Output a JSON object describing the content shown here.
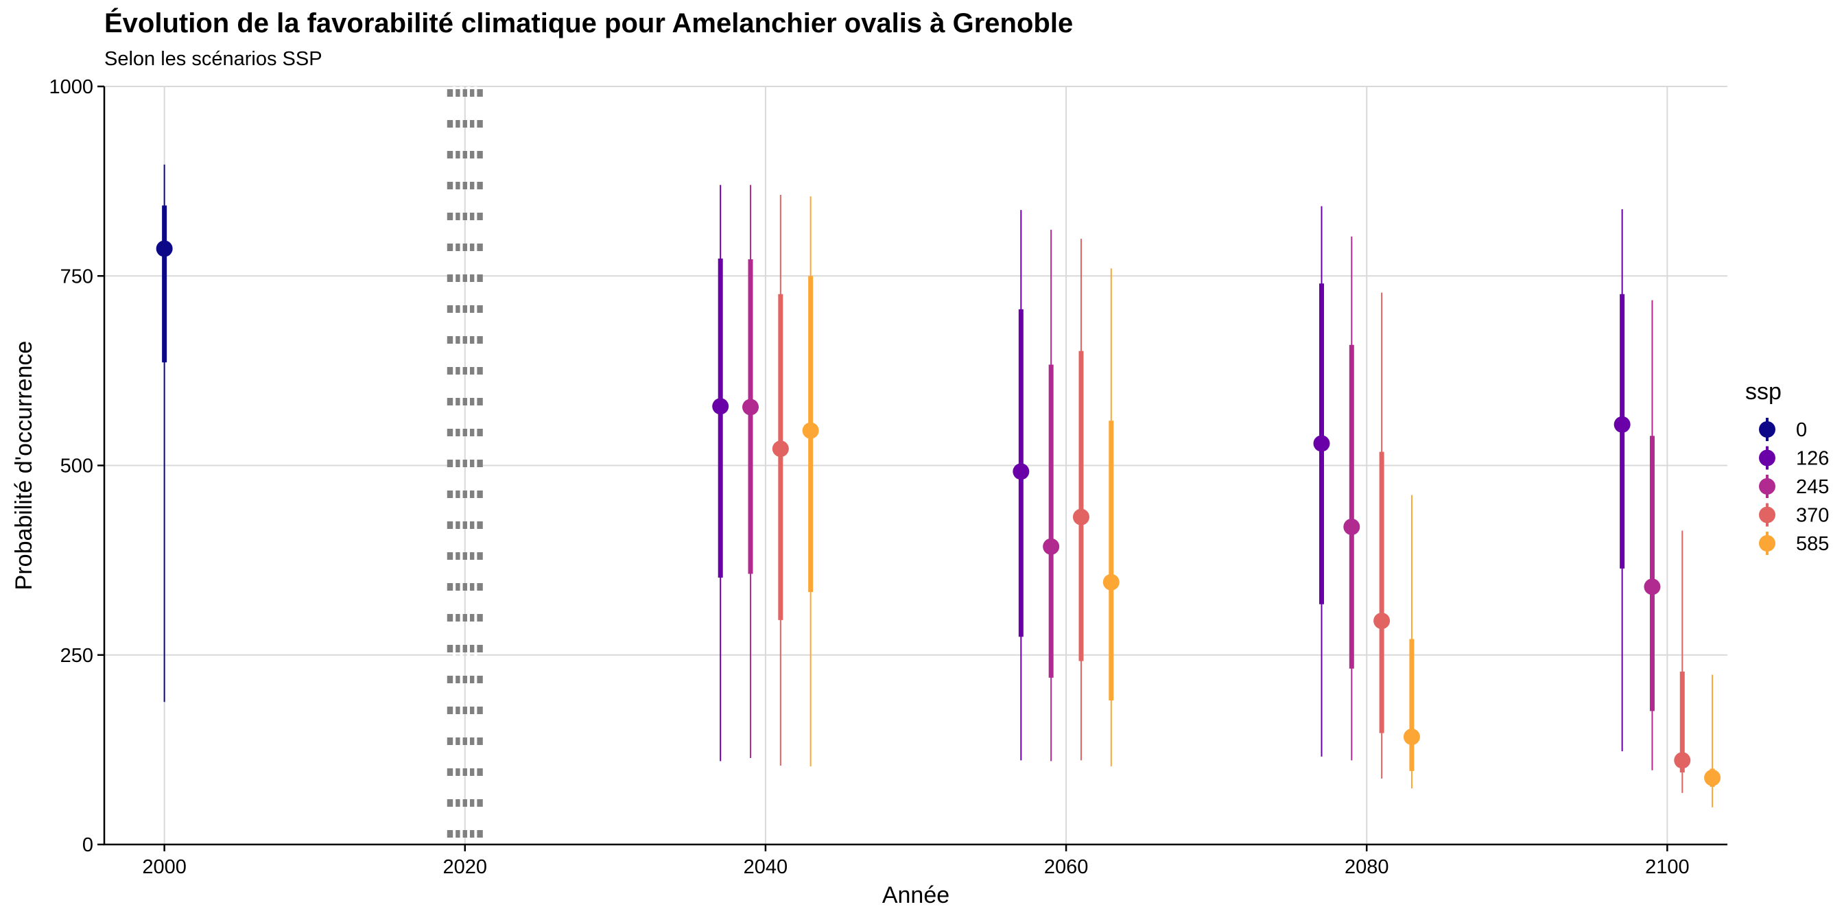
{
  "chart_data": {
    "type": "pointrange",
    "title": "Évolution de la favorabilité climatique pour Amelanchier ovalis à Grenoble",
    "subtitle": "Selon les scénarios SSP",
    "xlabel": "Année",
    "ylabel": "Probabilité d'occurrence",
    "xlim": [
      1996,
      2104
    ],
    "ylim": [
      0,
      1000
    ],
    "xticks": [
      2000,
      2020,
      2040,
      2060,
      2080,
      2100
    ],
    "yticks": [
      0,
      250,
      500,
      750,
      1000
    ],
    "grid": true,
    "reference_band": {
      "x": 2020,
      "style": "dotted",
      "color": "#808080"
    },
    "legend": {
      "title": "ssp",
      "placement": "right"
    },
    "series": [
      {
        "name": "0",
        "color": "#0D0887",
        "points": [
          {
            "x": 2000,
            "y": 786,
            "inner": [
              636,
              843
            ],
            "outer": [
              188,
              897
            ]
          }
        ]
      },
      {
        "name": "126",
        "color": "#6A00A8",
        "points": [
          {
            "x": 2037,
            "y": 578,
            "inner": [
              352,
              773
            ],
            "outer": [
              110,
              870
            ]
          },
          {
            "x": 2057,
            "y": 492,
            "inner": [
              274,
              706
            ],
            "outer": [
              111,
              837
            ]
          },
          {
            "x": 2077,
            "y": 529,
            "inner": [
              317,
              740
            ],
            "outer": [
              116,
              842
            ]
          },
          {
            "x": 2097,
            "y": 554,
            "inner": [
              364,
              726
            ],
            "outer": [
              123,
              838
            ]
          }
        ]
      },
      {
        "name": "245",
        "color": "#B12A90",
        "points": [
          {
            "x": 2039,
            "y": 577,
            "inner": [
              357,
              772
            ],
            "outer": [
              114,
              870
            ]
          },
          {
            "x": 2059,
            "y": 393,
            "inner": [
              220,
              633
            ],
            "outer": [
              110,
              811
            ]
          },
          {
            "x": 2079,
            "y": 419,
            "inner": [
              232,
              659
            ],
            "outer": [
              111,
              802
            ]
          },
          {
            "x": 2099,
            "y": 340,
            "inner": [
              176,
              539
            ],
            "outer": [
              98,
              718
            ]
          }
        ]
      },
      {
        "name": "370",
        "color": "#E16462",
        "points": [
          {
            "x": 2041,
            "y": 522,
            "inner": [
              296,
              726
            ],
            "outer": [
              104,
              857
            ]
          },
          {
            "x": 2061,
            "y": 432,
            "inner": [
              242,
              651
            ],
            "outer": [
              111,
              799
            ]
          },
          {
            "x": 2081,
            "y": 295,
            "inner": [
              147,
              518
            ],
            "outer": [
              87,
              728
            ]
          },
          {
            "x": 2101,
            "y": 111,
            "inner": [
              95,
              228
            ],
            "outer": [
              68,
              414
            ]
          }
        ]
      },
      {
        "name": "585",
        "color": "#FCA636",
        "points": [
          {
            "x": 2043,
            "y": 546,
            "inner": [
              333,
              750
            ],
            "outer": [
              103,
              855
            ]
          },
          {
            "x": 2063,
            "y": 346,
            "inner": [
              190,
              559
            ],
            "outer": [
              103,
              760
            ]
          },
          {
            "x": 2083,
            "y": 142,
            "inner": [
              97,
              271
            ],
            "outer": [
              74,
              461
            ]
          },
          {
            "x": 2103,
            "y": 88,
            "inner": [
              76,
              100
            ],
            "outer": [
              49,
              224
            ]
          }
        ]
      }
    ]
  }
}
